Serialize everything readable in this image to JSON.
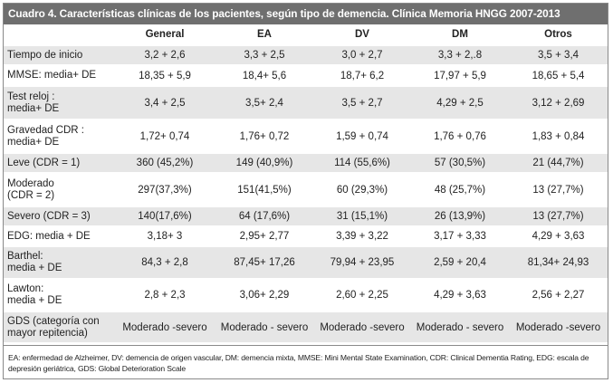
{
  "caption": "Cuadro 4. Características clínicas de los pacientes, según tipo de demencia. Clínica Memoria HNGG 2007-2013",
  "headers": [
    "",
    "General",
    "EA",
    "DV",
    "DM",
    "Otros"
  ],
  "rows": [
    {
      "label": [
        "Tiempo de inicio"
      ],
      "cells": [
        "3,2 + 2,6",
        "3,3 + 2,5",
        "3,0 + 2,7",
        "3,3 + 2,.8",
        "3,5 + 3,4"
      ]
    },
    {
      "label": [
        "MMSE: media+ DE"
      ],
      "cells": [
        "18,35 + 5,9",
        "18,4+ 5,6",
        "18,7+ 6,2",
        "17,97 + 5,9",
        "18,65 + 5,4"
      ]
    },
    {
      "label": [
        "Test reloj :",
        "media+ DE"
      ],
      "cells": [
        "3,4 + 2,5",
        "3,5+ 2,4",
        "3,5 + 2,7",
        "4,29 + 2,5",
        "3,12 + 2,69"
      ]
    },
    {
      "label": [
        "Gravedad CDR :",
        "media+ DE"
      ],
      "cells": [
        "1,72+ 0,74",
        "1,76+ 0,72",
        "1,59 + 0,74",
        "1,76 + 0,76",
        "1,83 + 0,84"
      ]
    },
    {
      "label": [
        "Leve (CDR = 1)"
      ],
      "cells": [
        "360 (45,2%)",
        "149 (40,9%)",
        "114 (55,6%)",
        "57 (30,5%)",
        "21 (44,7%)"
      ]
    },
    {
      "label": [
        "Moderado",
        "(CDR = 2)"
      ],
      "cells": [
        "297(37,3%)",
        "151(41,5%)",
        "60 (29,3%)",
        "48 (25,7%)",
        "13 (27,7%)"
      ]
    },
    {
      "label": [
        "Severo (CDR = 3)"
      ],
      "cells": [
        "140(17,6%)",
        "64 (17,6%)",
        "31 (15,1%)",
        "26 (13,9%)",
        "13 (27,7%)"
      ]
    },
    {
      "label": [
        "EDG: media + DE"
      ],
      "cells": [
        "3,18+ 3",
        "2,95+ 2,77",
        "3,39 + 3,22",
        "3,17 + 3,33",
        "4,29 + 3,63"
      ]
    },
    {
      "label": [
        "Barthel:",
        "media + DE"
      ],
      "cells": [
        "84,3 + 2,8",
        "87,45+ 17,26",
        "79,94 + 23,95",
        "2,59 + 20,4",
        "81,34+ 24,93"
      ]
    },
    {
      "label": [
        "Lawton:",
        "media + DE"
      ],
      "cells": [
        "2,8 + 2,3",
        "3,06+ 2,29",
        "2,60 + 2,25",
        "4,29 + 3,63",
        "2,56 + 2,27"
      ]
    },
    {
      "label": [
        "GDS (categoría con",
        "mayor repitencia)"
      ],
      "cells": [
        "Moderado -severo",
        "Moderado - severo",
        "Moderado -severo",
        "Moderado - severo",
        "Moderado -severo"
      ]
    }
  ],
  "footnote": "EA: enfermedad de Alzheimer, DV: demencia de origen vascular, DM: demencia mixta, MMSE: Mini Mental State Examination, CDR: Clinical Dementia Rating, EDG: escala de depresión geriátrica, GDS: Global Deterioration Scale"
}
